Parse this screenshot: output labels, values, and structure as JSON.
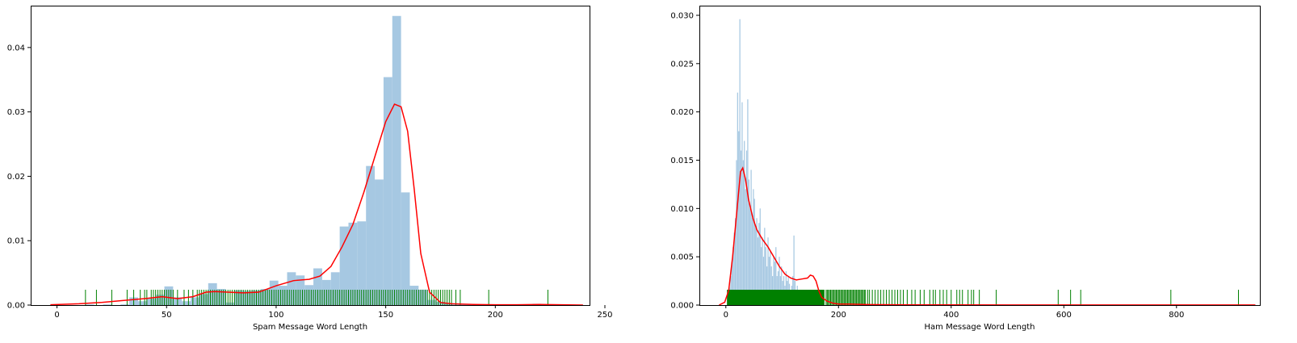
{
  "chart_data": [
    {
      "type": "histogram",
      "xlabel": "Spam Message Word Length",
      "ylabel": "",
      "xlim": [
        -12,
        243
      ],
      "ylim": [
        0,
        0.0465
      ],
      "xticks": [
        0,
        50,
        100,
        150,
        200,
        250
      ],
      "yticks": [
        0.0,
        0.01,
        0.02,
        0.03,
        0.04
      ],
      "ytick_labels": [
        "0.00",
        "0.01",
        "0.02",
        "0.03",
        "0.04"
      ],
      "histogram": {
        "color": "#a6c8e2",
        "bin_edges": [
          13,
          17,
          21,
          25,
          29,
          33,
          37,
          41,
          45,
          49,
          53,
          57,
          61,
          65,
          69,
          73,
          77,
          81,
          85,
          89,
          93,
          97,
          101,
          105,
          109,
          113,
          117,
          121,
          125,
          129,
          133,
          137,
          141,
          145,
          149,
          153,
          157,
          161,
          165,
          169,
          173,
          177,
          181,
          185,
          189,
          193,
          197,
          201,
          205,
          209,
          213,
          217,
          221,
          225
        ],
        "values": [
          0.0001,
          0,
          0.0001,
          0,
          0.0001,
          0.0012,
          0.0006,
          0.001,
          0.0016,
          0.0029,
          0.0012,
          0.0006,
          0.0012,
          0.0017,
          0.0034,
          0.0025,
          0.0004,
          0.0023,
          0.0022,
          0.0023,
          0.0025,
          0.0038,
          0.003,
          0.0051,
          0.0046,
          0.0031,
          0.0057,
          0.0039,
          0.0051,
          0.0122,
          0.0128,
          0.013,
          0.0216,
          0.0195,
          0.0354,
          0.0449,
          0.0175,
          0.003,
          0.0024,
          0.0008,
          0.0005,
          0.0003,
          0.0002,
          0.0001,
          0,
          0,
          0,
          0,
          0,
          0,
          0,
          0.0002,
          0.0001
        ]
      },
      "kde": {
        "color": "#ff0000",
        "x": [
          -3,
          10,
          20,
          30,
          40,
          48,
          55,
          62,
          68,
          72,
          78,
          85,
          92,
          100,
          108,
          115,
          120,
          125,
          130,
          135,
          140,
          145,
          150,
          154,
          157,
          160,
          163,
          166,
          170,
          175,
          180,
          190,
          200,
          210,
          220,
          230,
          240
        ],
        "y": [
          5e-05,
          0.0002,
          0.0004,
          0.0007,
          0.001,
          0.0013,
          0.001,
          0.0013,
          0.002,
          0.0021,
          0.002,
          0.0019,
          0.002,
          0.003,
          0.0038,
          0.004,
          0.0045,
          0.006,
          0.009,
          0.0125,
          0.0175,
          0.023,
          0.0285,
          0.0312,
          0.0308,
          0.027,
          0.018,
          0.008,
          0.002,
          0.0004,
          0.0002,
          0.0001,
          5e-05,
          5e-05,
          0.0001,
          5e-05,
          0.0
        ]
      },
      "rug": {
        "color": "#008000",
        "values": [
          13,
          18,
          25,
          32,
          35,
          38,
          40,
          41,
          43,
          44,
          45,
          46,
          47,
          48,
          49,
          50,
          51,
          52,
          53,
          55,
          58,
          60,
          62,
          64,
          65,
          66,
          67,
          68,
          69,
          70,
          71,
          72,
          73,
          74,
          75,
          76,
          77,
          78,
          79,
          80,
          81,
          82,
          83,
          84,
          85,
          86,
          87,
          88,
          89,
          90,
          91,
          92,
          93,
          94,
          95,
          96,
          97,
          98,
          99,
          100,
          101,
          102,
          103,
          104,
          105,
          106,
          107,
          108,
          109,
          110,
          111,
          112,
          113,
          114,
          115,
          116,
          117,
          118,
          119,
          120,
          121,
          122,
          123,
          124,
          125,
          126,
          127,
          128,
          129,
          130,
          131,
          132,
          133,
          134,
          135,
          136,
          137,
          138,
          139,
          140,
          141,
          142,
          143,
          144,
          145,
          146,
          147,
          148,
          149,
          150,
          151,
          152,
          153,
          154,
          155,
          156,
          157,
          158,
          159,
          160,
          161,
          162,
          163,
          164,
          165,
          166,
          167,
          168,
          169,
          170,
          171,
          172,
          173,
          174,
          175,
          176,
          177,
          178,
          179,
          180,
          182,
          184,
          197,
          224
        ]
      }
    },
    {
      "type": "histogram",
      "xlabel": "Ham Message Word Length",
      "ylabel": "",
      "xlim": [
        -47,
        948
      ],
      "ylim": [
        0,
        0.031
      ],
      "xticks": [
        0,
        200,
        400,
        600,
        800
      ],
      "yticks": [
        0.0,
        0.005,
        0.01,
        0.015,
        0.02,
        0.025,
        0.03
      ],
      "ytick_labels": [
        "0.000",
        "0.005",
        "0.010",
        "0.015",
        "0.020",
        "0.025",
        "0.030"
      ],
      "histogram": {
        "color": "#a6c8e2",
        "bin_start": 2,
        "bin_width": 2,
        "values": [
          0.0008,
          0.0012,
          0.0018,
          0.003,
          0.0045,
          0.006,
          0.0075,
          0.009,
          0.015,
          0.022,
          0.018,
          0.0296,
          0.016,
          0.021,
          0.015,
          0.017,
          0.012,
          0.016,
          0.0213,
          0.013,
          0.01,
          0.014,
          0.009,
          0.012,
          0.011,
          0.008,
          0.009,
          0.007,
          0.0085,
          0.01,
          0.006,
          0.007,
          0.005,
          0.008,
          0.006,
          0.004,
          0.007,
          0.005,
          0.0055,
          0.004,
          0.003,
          0.005,
          0.0045,
          0.006,
          0.003,
          0.0035,
          0.005,
          0.003,
          0.004,
          0.0025,
          0.003,
          0.002,
          0.0035,
          0.0025,
          0.003,
          0.0022,
          0.0015,
          0.002,
          0.003,
          0.0072,
          0.0025,
          0.0015,
          0.002,
          0.0012,
          0.0015,
          0.001,
          0.0008,
          0.0007,
          0.0005,
          0.0004,
          0.0003,
          0.0003,
          0.0002,
          0.0002,
          0.0002,
          0.0001
        ]
      },
      "kde": {
        "color": "#ff0000",
        "x": [
          -12,
          -2,
          5,
          12,
          20,
          26,
          30,
          35,
          40,
          48,
          55,
          65,
          75,
          85,
          95,
          105,
          115,
          125,
          135,
          145,
          150,
          155,
          160,
          165,
          170,
          180,
          190,
          200,
          220,
          250,
          300,
          400,
          500,
          600,
          700,
          800,
          900,
          940
        ],
        "y": [
          0,
          0.0003,
          0.0015,
          0.005,
          0.01,
          0.0138,
          0.0142,
          0.013,
          0.011,
          0.009,
          0.0078,
          0.0068,
          0.006,
          0.005,
          0.004,
          0.0032,
          0.0028,
          0.0026,
          0.0027,
          0.0028,
          0.0031,
          0.003,
          0.0025,
          0.0015,
          0.0008,
          0.0004,
          0.0002,
          0.0001,
          0.0001,
          5e-05,
          3e-05,
          2e-05,
          1e-05,
          1e-05,
          1e-05,
          1e-05,
          1e-05,
          1e-05
        ]
      },
      "rug": {
        "color": "#008000",
        "dense_range": [
          2,
          175
        ],
        "values": [
          178,
          180,
          182,
          184,
          186,
          188,
          190,
          192,
          194,
          196,
          198,
          200,
          202,
          204,
          206,
          208,
          210,
          212,
          214,
          216,
          218,
          220,
          222,
          224,
          226,
          228,
          230,
          232,
          234,
          236,
          238,
          240,
          242,
          244,
          246,
          248,
          252,
          255,
          260,
          265,
          270,
          275,
          280,
          285,
          290,
          295,
          300,
          305,
          310,
          315,
          322,
          330,
          336,
          345,
          352,
          362,
          368,
          372,
          380,
          386,
          392,
          400,
          410,
          415,
          420,
          430,
          436,
          440,
          450,
          480,
          590,
          612,
          630,
          790,
          910
        ]
      }
    }
  ]
}
